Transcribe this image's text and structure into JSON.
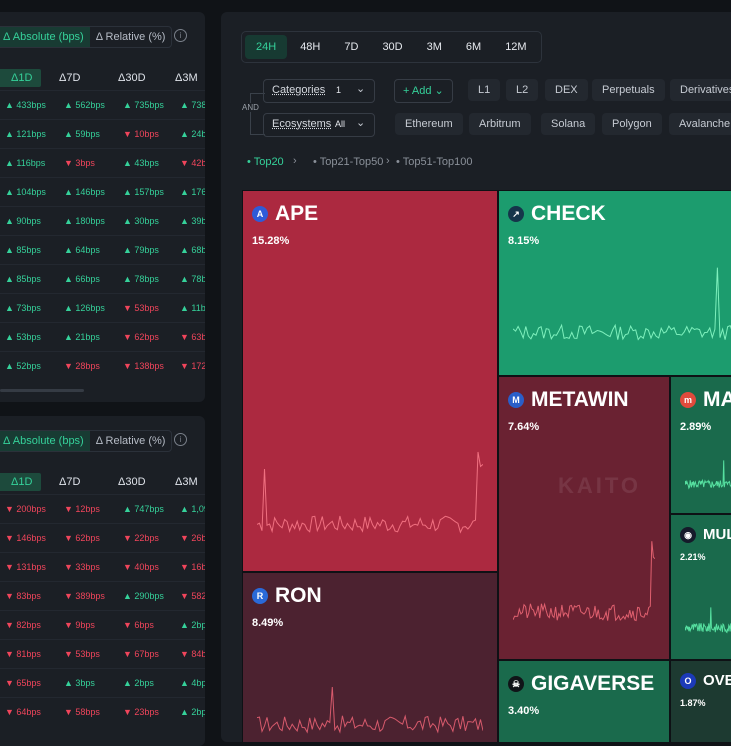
{
  "panels": [
    {
      "toggle_absolute": "Δ Absolute (bps)",
      "toggle_relative": "Δ Relative (%)",
      "headers": [
        "Δ1D",
        "Δ7D",
        "Δ30D",
        "Δ3M"
      ],
      "rows": [
        [
          [
            "up",
            "433bps"
          ],
          [
            "up",
            "562bps"
          ],
          [
            "up",
            "735bps"
          ],
          [
            "up",
            "738"
          ]
        ],
        [
          [
            "up",
            "121bps"
          ],
          [
            "up",
            "59bps"
          ],
          [
            "dn",
            "10bps"
          ],
          [
            "up",
            "24b"
          ]
        ],
        [
          [
            "up",
            "116bps"
          ],
          [
            "dn",
            "3bps"
          ],
          [
            "up",
            "43bps"
          ],
          [
            "dn",
            "42b"
          ]
        ],
        [
          [
            "up",
            "104bps"
          ],
          [
            "up",
            "146bps"
          ],
          [
            "up",
            "157bps"
          ],
          [
            "up",
            "176"
          ]
        ],
        [
          [
            "up",
            "90bps"
          ],
          [
            "up",
            "180bps"
          ],
          [
            "up",
            "30bps"
          ],
          [
            "up",
            "39b"
          ]
        ],
        [
          [
            "up",
            "85bps"
          ],
          [
            "up",
            "64bps"
          ],
          [
            "up",
            "79bps"
          ],
          [
            "up",
            "68b"
          ]
        ],
        [
          [
            "up",
            "85bps"
          ],
          [
            "up",
            "66bps"
          ],
          [
            "up",
            "78bps"
          ],
          [
            "up",
            "78b"
          ]
        ],
        [
          [
            "up",
            "73bps"
          ],
          [
            "up",
            "126bps"
          ],
          [
            "dn",
            "53bps"
          ],
          [
            "up",
            "11b"
          ]
        ],
        [
          [
            "up",
            "53bps"
          ],
          [
            "up",
            "21bps"
          ],
          [
            "dn",
            "62bps"
          ],
          [
            "dn",
            "63b"
          ]
        ],
        [
          [
            "up",
            "52bps"
          ],
          [
            "dn",
            "28bps"
          ],
          [
            "dn",
            "138bps"
          ],
          [
            "dn",
            "172"
          ]
        ]
      ]
    },
    {
      "toggle_absolute": "Δ Absolute (bps)",
      "toggle_relative": "Δ Relative (%)",
      "headers": [
        "Δ1D",
        "Δ7D",
        "Δ30D",
        "Δ3M"
      ],
      "rows": [
        [
          [
            "dn",
            "200bps"
          ],
          [
            "dn",
            "12bps"
          ],
          [
            "up",
            "747bps"
          ],
          [
            "up",
            "1,09"
          ]
        ],
        [
          [
            "dn",
            "146bps"
          ],
          [
            "dn",
            "62bps"
          ],
          [
            "dn",
            "22bps"
          ],
          [
            "dn",
            "26b"
          ]
        ],
        [
          [
            "dn",
            "131bps"
          ],
          [
            "dn",
            "33bps"
          ],
          [
            "dn",
            "40bps"
          ],
          [
            "dn",
            "16b"
          ]
        ],
        [
          [
            "dn",
            "83bps"
          ],
          [
            "dn",
            "389bps"
          ],
          [
            "up",
            "290bps"
          ],
          [
            "dn",
            "582"
          ]
        ],
        [
          [
            "dn",
            "82bps"
          ],
          [
            "dn",
            "9bps"
          ],
          [
            "dn",
            "6bps"
          ],
          [
            "up",
            "2bp"
          ]
        ],
        [
          [
            "dn",
            "81bps"
          ],
          [
            "dn",
            "53bps"
          ],
          [
            "dn",
            "67bps"
          ],
          [
            "dn",
            "84b"
          ]
        ],
        [
          [
            "dn",
            "65bps"
          ],
          [
            "up",
            "3bps"
          ],
          [
            "up",
            "2bps"
          ],
          [
            "up",
            "4bp"
          ]
        ],
        [
          [
            "dn",
            "64bps"
          ],
          [
            "dn",
            "58bps"
          ],
          [
            "dn",
            "23bps"
          ],
          [
            "up",
            "2bp"
          ]
        ]
      ]
    }
  ],
  "timeframes": [
    "24H",
    "48H",
    "7D",
    "30D",
    "3M",
    "6M",
    "12M"
  ],
  "active_timeframe": "24H",
  "filters": {
    "categories_label": "Categories",
    "categories_count": "1",
    "ecosystems_label": "Ecosystems",
    "ecosystems_value": "All",
    "and_label": "AND",
    "add_label": "+ Add",
    "categories": [
      "L1",
      "L2",
      "DEX",
      "Perpetuals",
      "Derivatives"
    ],
    "ecosystems": [
      "Ethereum",
      "Arbitrum",
      "Solana",
      "Polygon",
      "Avalanche"
    ]
  },
  "tiers": [
    "Top20",
    "Top21-Top50",
    "Top51-Top100"
  ],
  "active_tier": "Top20",
  "watermark": "KAITO",
  "tiles": [
    {
      "name": "APE",
      "pct": "15.28%",
      "icon": "ape-coin-icon",
      "glyph": "A",
      "icon_color": "#2f5bd8",
      "bg": "#ac2940",
      "line_color": "#f07080"
    },
    {
      "name": "CHECK",
      "pct": "8.15%",
      "icon": "check-icon",
      "glyph": "↗",
      "icon_color": "#15354a",
      "bg": "#1c9c6e",
      "line_color": "#7ef0bd"
    },
    {
      "name": "METAWIN",
      "pct": "7.64%",
      "icon": "metawin-icon",
      "glyph": "M",
      "icon_color": "#2a5fc9",
      "bg": "#6a2232",
      "line_color": "#e0606f"
    },
    {
      "name": "MA",
      "pct": "2.89%",
      "icon": "ma-icon",
      "glyph": "m",
      "icon_color": "#e04a3c",
      "bg": "#1a6a4c",
      "line_color": "#56e0a0"
    },
    {
      "name": "MUL",
      "pct": "2.21%",
      "icon": "mul-icon",
      "glyph": "◉",
      "icon_color": "#151a2a",
      "bg": "#1a6a4c",
      "line_color": "#56e0a0"
    },
    {
      "name": "RON",
      "pct": "8.49%",
      "icon": "ronin-icon",
      "glyph": "R",
      "icon_color": "#2a6ad8",
      "bg": "#4c2230",
      "line_color": "#d75a6c"
    },
    {
      "name": "GIGAVERSE",
      "pct": "3.40%",
      "icon": "gigaverse-icon",
      "glyph": "☠",
      "icon_color": "#101418",
      "bg": "#1a6a4c",
      "line_color": "#56e0a0"
    },
    {
      "name": "OVE",
      "pct": "1.87%",
      "icon": "ove-icon",
      "glyph": "O",
      "icon_color": "#1c3ab8",
      "bg": "#1d3a31",
      "line_color": "#56e0a0"
    }
  ]
}
